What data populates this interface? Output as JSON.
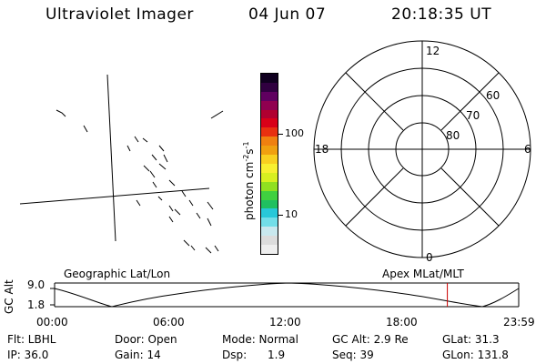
{
  "header": {
    "instrument": "Ultraviolet Imager",
    "date": "04 Jun 07",
    "time": "20:18:35 UT"
  },
  "colorbar": {
    "label": "photon cm",
    "exp1": "-2",
    "unit2": "s",
    "exp2": "-1",
    "ticks": [
      {
        "label": "100",
        "value": 100
      },
      {
        "label": "10",
        "value": 10
      }
    ],
    "colors": [
      "#eeeeee",
      "#dcdcdc",
      "#c9e8ee",
      "#72dee8",
      "#28c8d8",
      "#20c060",
      "#40d040",
      "#90e020",
      "#d8f020",
      "#f8f030",
      "#f8d020",
      "#f0a010",
      "#f08010",
      "#e83010",
      "#d80018",
      "#b00030",
      "#900050",
      "#600060",
      "#300040",
      "#100020"
    ]
  },
  "polar": {
    "mlt_labels": [
      "12",
      "18",
      "6",
      "0"
    ],
    "lat_labels": [
      "60",
      "70",
      "80"
    ]
  },
  "timeline": {
    "label_left": "Geographic Lat/Lon",
    "label_right": "Apex MLat/MLT",
    "axis_title": "GC Alt",
    "y_labels": [
      "9.0",
      "1.8"
    ],
    "x_labels": [
      "00:00",
      "06:00",
      "12:00",
      "18:00",
      "23:59"
    ],
    "current_marker_hours": 20.31,
    "marker_color": "#cc0000"
  },
  "info": {
    "row1": {
      "flt": "Flt: LBHL",
      "door": "Door: Open",
      "mode": "Mode: Normal",
      "gcalt": "GC Alt: 2.9 Re",
      "glat": "GLat: 31.3"
    },
    "row2": {
      "ip": "IP: 36.0",
      "gain": "Gain: 14",
      "dsp": "Dsp:      1.9",
      "seq": "Seq: 39",
      "glon": "GLon: 131.8"
    }
  }
}
